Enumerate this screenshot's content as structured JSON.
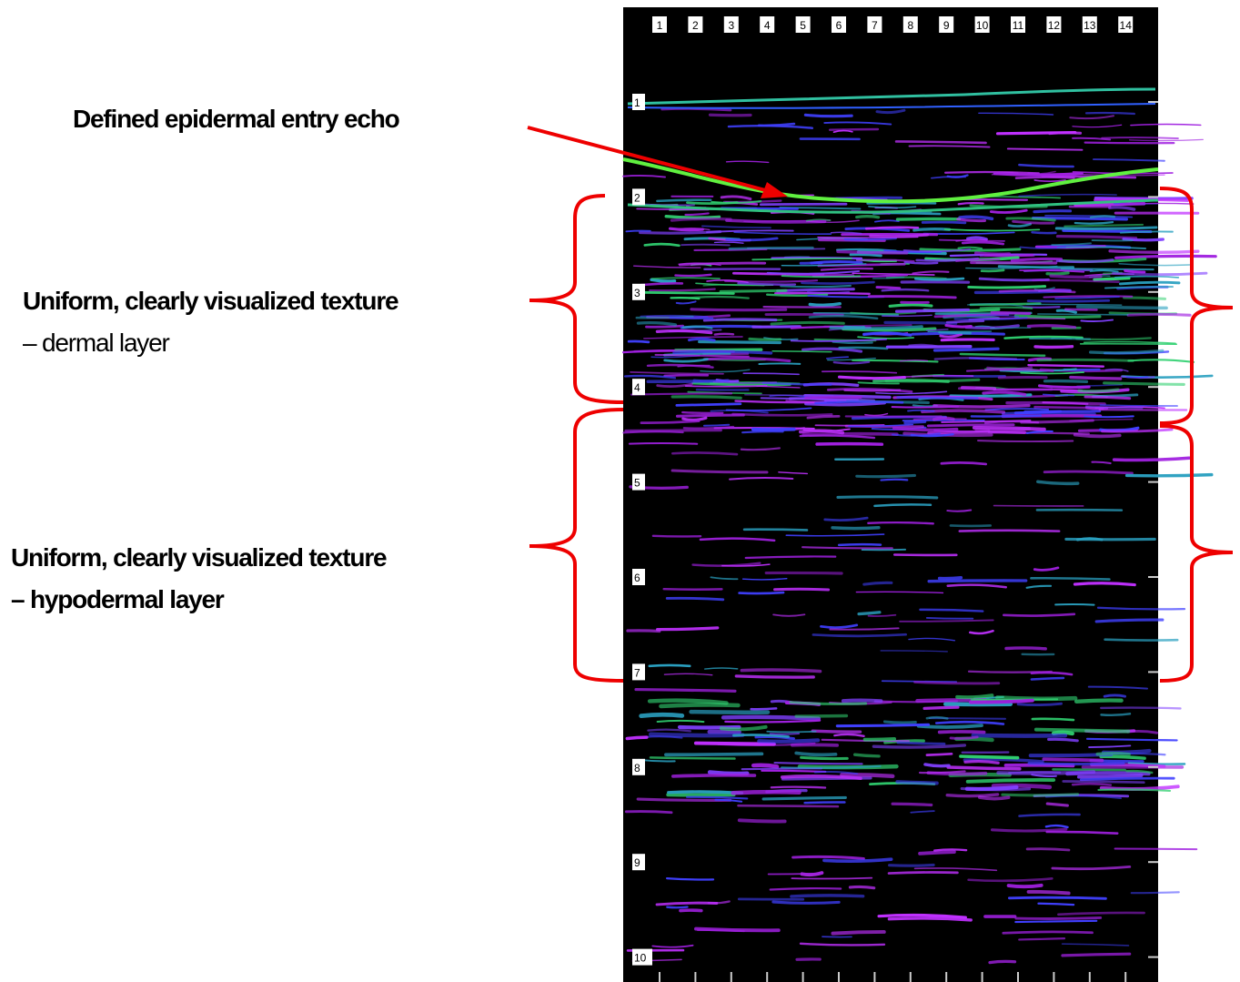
{
  "annotations": {
    "epidermal": "Defined epidermal entry echo",
    "dermal": [
      "Uniform, clearly visualized texture",
      "– dermal layer"
    ],
    "hypodermal": [
      "Uniform, clearly visualized texture",
      "– hypodermal layer"
    ]
  },
  "scale": {
    "top": [
      1,
      2,
      3,
      4,
      5,
      6,
      7,
      8,
      9,
      10,
      11,
      12,
      13,
      14
    ],
    "left": [
      1,
      2,
      3,
      4,
      5,
      6,
      7,
      8,
      9,
      10
    ]
  }
}
